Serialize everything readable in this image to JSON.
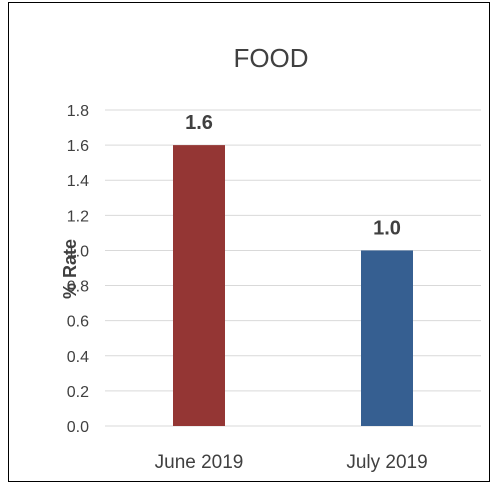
{
  "chart_data": {
    "type": "bar",
    "title": "FOOD",
    "xlabel": "",
    "ylabel": "% Rate",
    "categories": [
      "June 2019",
      "July 2019"
    ],
    "values": [
      1.6,
      1.0
    ],
    "data_labels": [
      "1.6",
      "1.0"
    ],
    "bar_colors": [
      "#943634",
      "#365F91"
    ],
    "ylim": [
      0,
      1.8
    ],
    "yticks": [
      "0.0",
      "0.2",
      "0.4",
      "0.6",
      "0.8",
      "1.0",
      "1.2",
      "1.4",
      "1.6",
      "1.8"
    ],
    "grid": true,
    "legend": "none"
  }
}
